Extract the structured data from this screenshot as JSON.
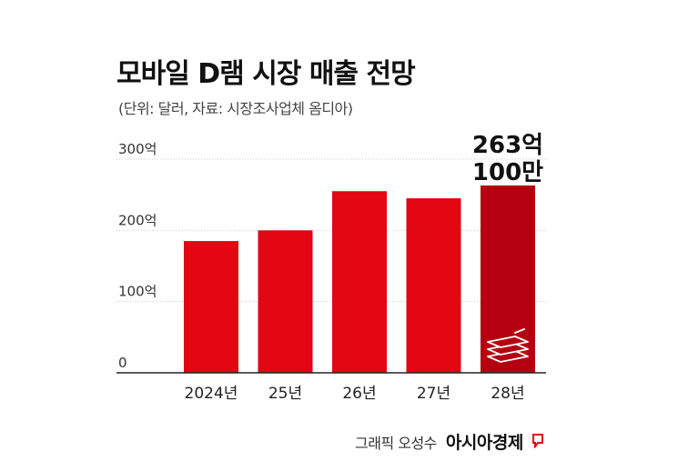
{
  "title": "모바일 D램 시장 매출 전망",
  "subtitle": "(단위: 달러, 자료: 시장조사업체 옴디아)",
  "credit": {
    "author": "그래픽 오성수",
    "brand": "아시아경제"
  },
  "colors": {
    "bar": "#e30613",
    "bar_highlight": "#b50010",
    "axis": "#222222",
    "grid": "#cccccc",
    "brand_accent": "#e30613"
  },
  "icons": {
    "money": "money-stack-icon",
    "brand": "brand-mark-icon"
  },
  "chart_data": {
    "type": "bar",
    "categories": [
      "2024년",
      "25년",
      "26년",
      "27년",
      "28년"
    ],
    "values": [
      185,
      200,
      255,
      245,
      263.01
    ],
    "ylim": [
      0,
      300
    ],
    "yticks": [
      {
        "value": 0,
        "label": "0"
      },
      {
        "value": 100,
        "label": "100억"
      },
      {
        "value": 200,
        "label": "200억"
      },
      {
        "value": 300,
        "label": "300억"
      }
    ],
    "highlight_index": 4,
    "callout": {
      "line1": "263억",
      "line2": "100만"
    },
    "grid": true,
    "legend": "none"
  }
}
